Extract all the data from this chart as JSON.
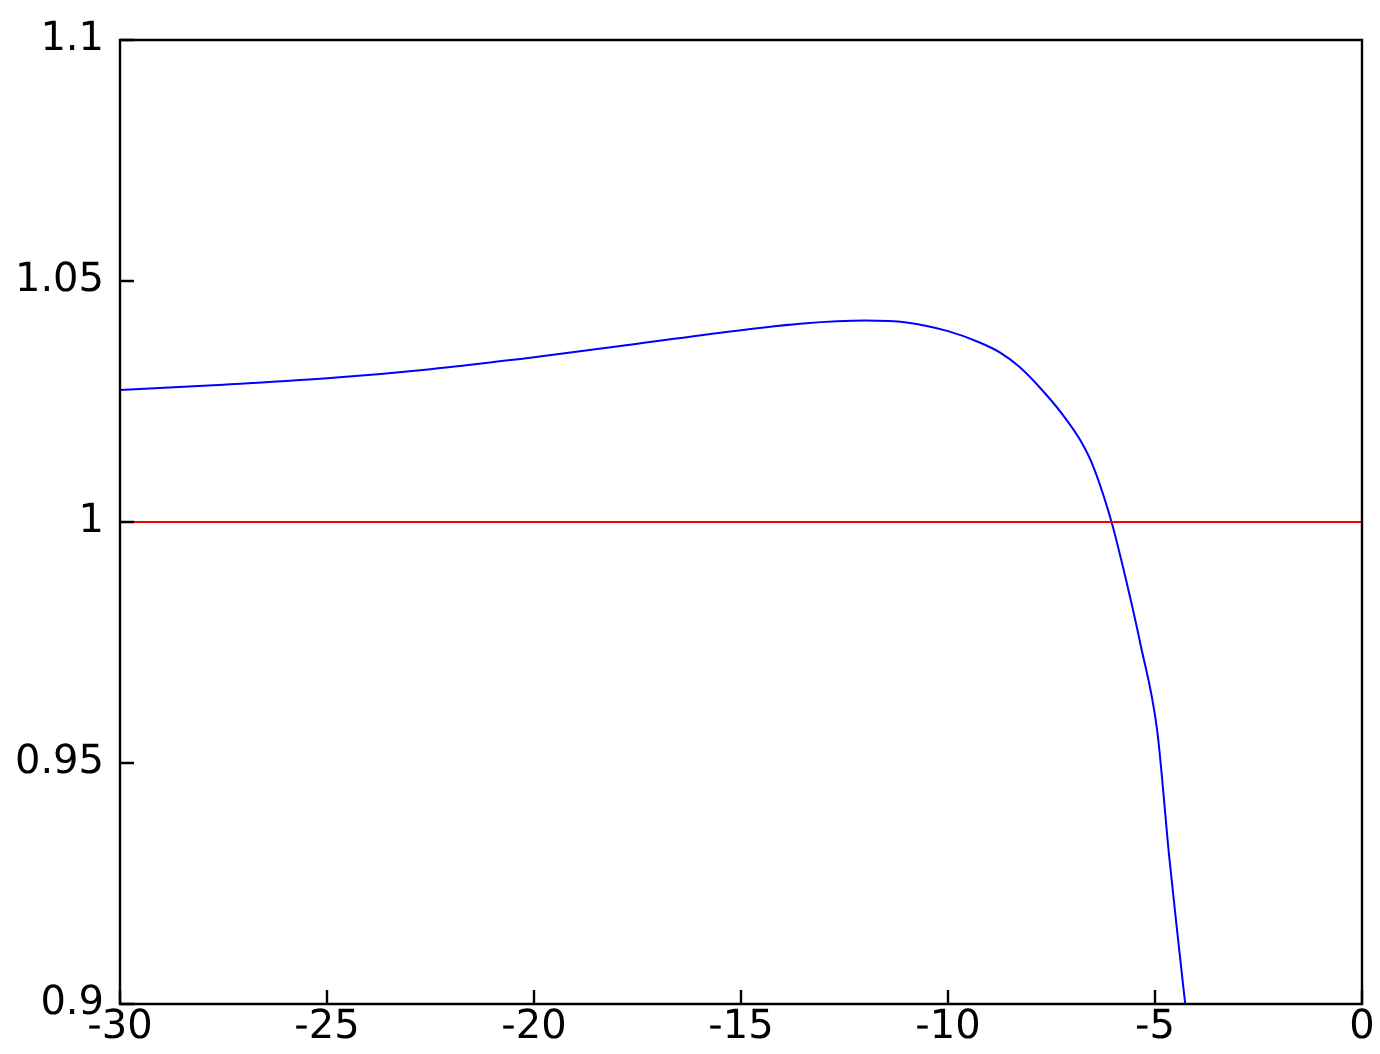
{
  "chart_data": {
    "type": "line",
    "x": [
      -30,
      -27.5,
      -25,
      -22.5,
      -20,
      -17.5,
      -15,
      -13.5,
      -12,
      -11,
      -10,
      -9.25,
      -8.75,
      -8.25,
      -7.75,
      -7.25,
      -6.8,
      -6.5,
      -6.05,
      -5.7,
      -5.35,
      -4.95,
      -4.65,
      -4.45,
      -4.27
    ],
    "series": [
      {
        "color": "#0000ff",
        "values": [
          1.0274,
          1.0285,
          1.0298,
          1.0317,
          1.0342,
          1.037,
          1.0398,
          1.0412,
          1.0418,
          1.0414,
          1.0396,
          1.0373,
          1.0352,
          1.032,
          1.0276,
          1.0225,
          1.0169,
          1.0117,
          1.0,
          0.988,
          0.9746,
          0.9569,
          0.93,
          0.914,
          0.9
        ]
      }
    ],
    "xlim": [
      -30,
      0
    ],
    "xticks": [
      -30,
      -25,
      -20,
      -15,
      -10,
      -5,
      0
    ],
    "ylim": [
      0.9,
      1.1
    ],
    "yticks": [
      0.9,
      0.95,
      1,
      1.05,
      1.1
    ],
    "ref_lines": [
      {
        "axis": "y",
        "value": 1,
        "color": "#ff0000"
      }
    ]
  }
}
